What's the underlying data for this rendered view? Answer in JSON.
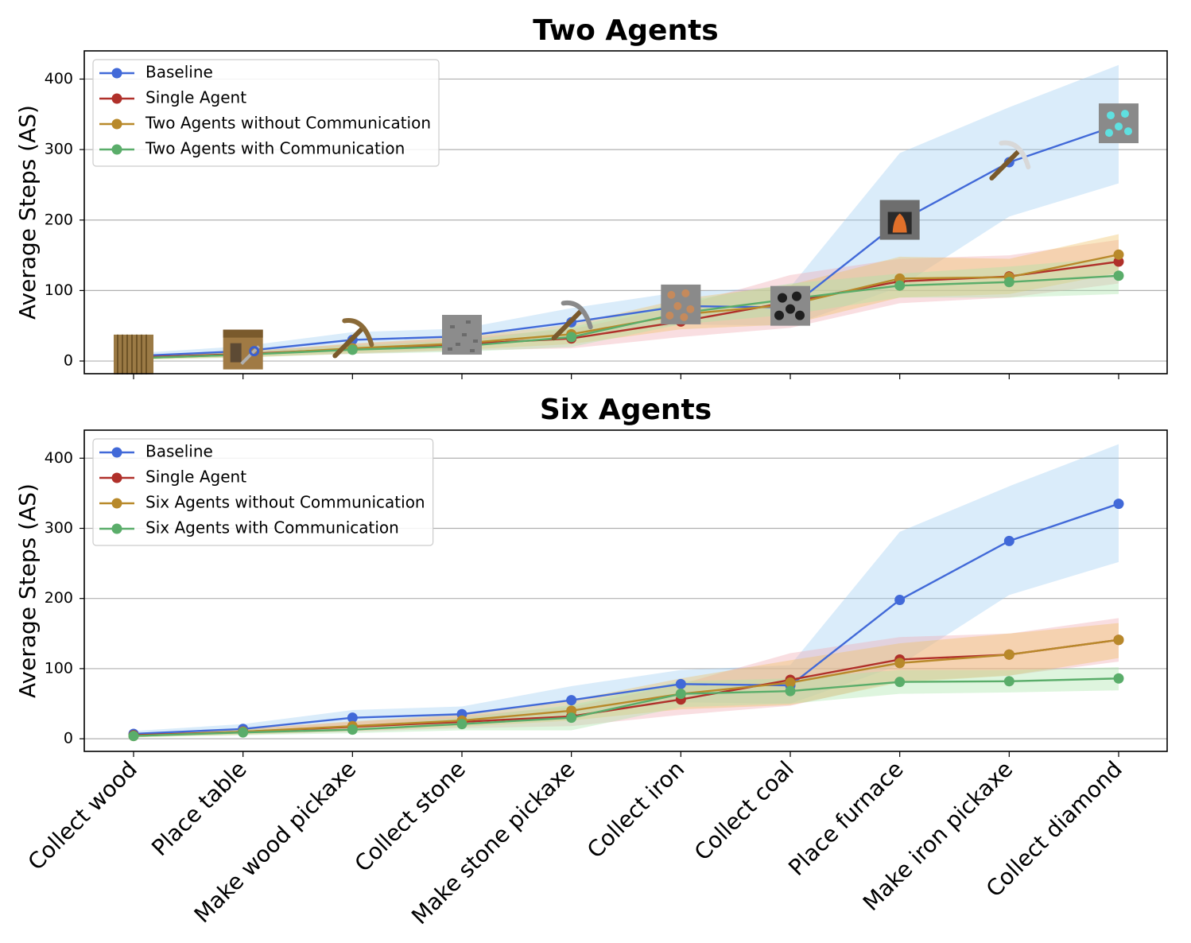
{
  "chart_data": {
    "type": "line",
    "categories": [
      "Collect wood",
      "Place table",
      "Make wood pickaxe",
      "Collect stone",
      "Make stone pickaxe",
      "Collect iron",
      "Collect coal",
      "Place furnace",
      "Make iron pickaxe",
      "Collect diamond"
    ],
    "ylabel": "Average Steps (AS)",
    "ylim": [
      -18,
      440
    ],
    "yticks": [
      0,
      100,
      200,
      300,
      400
    ],
    "grid": "horizontal",
    "legend_position": "upper-left",
    "icons": [
      "wood-log-icon",
      "crafting-table-icon",
      "wood-pickaxe-icon",
      "stone-block-icon",
      "stone-pickaxe-icon",
      "iron-ore-icon",
      "coal-ore-icon",
      "furnace-icon",
      "iron-pickaxe-icon",
      "diamond-ore-icon"
    ],
    "panels": [
      {
        "title": "Two Agents",
        "icons_shown": true,
        "series": [
          {
            "name": "Baseline",
            "color": "#4169d8",
            "band_color": "#9fcdf2",
            "values": [
              7,
              14,
              30,
              35,
              55,
              78,
              76,
              198,
              282,
              335
            ],
            "lower": [
              3,
              8,
              20,
              24,
              35,
              52,
              50,
              105,
              205,
              252
            ],
            "upper": [
              11,
              21,
              41,
              46,
              75,
              98,
              105,
              295,
              360,
              420
            ]
          },
          {
            "name": "Single Agent",
            "color": "#b0302a",
            "band_color": "#f0a9b0",
            "values": [
              5,
              10,
              17,
              24,
              32,
              56,
              84,
              113,
              120,
              141
            ],
            "lower": [
              3,
              6,
              10,
              15,
              18,
              34,
              47,
              82,
              90,
              110
            ],
            "upper": [
              7,
              14,
              24,
              33,
              45,
              78,
              122,
              145,
              150,
              172
            ]
          },
          {
            "name": "Two Agents without Communication",
            "color": "#b8892a",
            "band_color": "#f0c060",
            "values": [
              4,
              9,
              18,
              25,
              38,
              66,
              80,
              117,
              119,
              151
            ],
            "lower": [
              2,
              5,
              11,
              16,
              24,
              45,
              52,
              90,
              95,
              125
            ],
            "upper": [
              6,
              13,
              25,
              34,
              52,
              88,
              108,
              148,
              145,
              180
            ]
          },
          {
            "name": "Two Agents with Communication",
            "color": "#5aad6a",
            "band_color": "#a8e5a8",
            "values": [
              4,
              9,
              16,
              21,
              34,
              68,
              88,
              107,
              112,
              121
            ],
            "lower": [
              2,
              5,
              10,
              13,
              20,
              52,
              66,
              90,
              90,
              95
            ],
            "upper": [
              6,
              13,
              22,
              29,
              48,
              84,
              110,
              124,
              134,
              147
            ]
          }
        ]
      },
      {
        "title": "Six Agents",
        "icons_shown": false,
        "series": [
          {
            "name": "Baseline",
            "color": "#4169d8",
            "band_color": "#9fcdf2",
            "values": [
              7,
              14,
              30,
              35,
              55,
              78,
              76,
              198,
              282,
              335
            ],
            "lower": [
              3,
              8,
              20,
              24,
              35,
              52,
              50,
              105,
              205,
              252
            ],
            "upper": [
              11,
              21,
              41,
              46,
              75,
              98,
              105,
              295,
              360,
              420
            ]
          },
          {
            "name": "Single Agent",
            "color": "#b0302a",
            "band_color": "#f0a9b0",
            "values": [
              5,
              10,
              17,
              24,
              32,
              56,
              84,
              113,
              120,
              141
            ],
            "lower": [
              3,
              6,
              10,
              15,
              18,
              34,
              47,
              82,
              90,
              110
            ],
            "upper": [
              7,
              14,
              24,
              33,
              45,
              78,
              122,
              145,
              150,
              172
            ]
          },
          {
            "name": "Six Agents without Communication",
            "color": "#b8892a",
            "band_color": "#f0c060",
            "values": [
              4,
              10,
              18,
              26,
              40,
              64,
              80,
              108,
              120,
              141
            ],
            "lower": [
              2,
              6,
              11,
              17,
              26,
              42,
              48,
              80,
              90,
              115
            ],
            "upper": [
              6,
              14,
              25,
              35,
              55,
              86,
              112,
              136,
              150,
              165
            ]
          },
          {
            "name": "Six Agents with Communication",
            "color": "#5aad6a",
            "band_color": "#a8e5a8",
            "values": [
              4,
              9,
              13,
              21,
              30,
              64,
              68,
              81,
              82,
              86
            ],
            "lower": [
              2,
              5,
              8,
              12,
              12,
              45,
              50,
              64,
              66,
              69
            ],
            "upper": [
              6,
              13,
              18,
              30,
              48,
              82,
              86,
              98,
              98,
              102
            ]
          }
        ]
      }
    ]
  }
}
